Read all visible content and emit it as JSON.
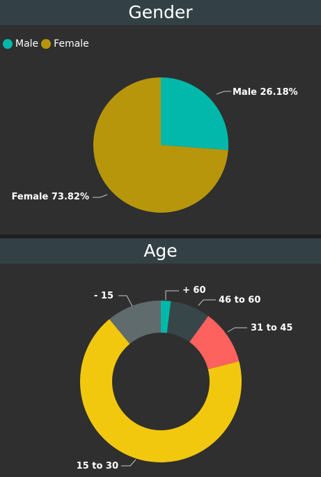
{
  "gender": {
    "title": "Gender",
    "legend": [
      {
        "label": "Male",
        "color": "#01b8aa"
      },
      {
        "label": "Female",
        "color": "#b8960b"
      }
    ]
  },
  "age": {
    "title": "Age"
  },
  "chart_data": [
    {
      "type": "pie",
      "title": "Gender",
      "legend_placement": "top-left",
      "slices": [
        {
          "name": "Male",
          "value": 26.18,
          "label": "Male 26.18%",
          "color": "#01b8aa"
        },
        {
          "name": "Female",
          "value": 73.82,
          "label": "Female 73.82%",
          "color": "#b8960b"
        }
      ]
    },
    {
      "type": "pie",
      "subtype": "donut",
      "title": "Age",
      "slices": [
        {
          "name": "+ 60",
          "value": 2,
          "label": "+ 60",
          "color": "#01b8aa"
        },
        {
          "name": "46 to 60",
          "value": 8,
          "label": "46 to 60",
          "color": "#374649"
        },
        {
          "name": "31 to 45",
          "value": 11,
          "label": "31 to 45",
          "color": "#fd625e"
        },
        {
          "name": "15 to 30",
          "value": 68,
          "label": "15 to 30",
          "color": "#f2c80f"
        },
        {
          "name": "- 15",
          "value": 11,
          "label": "- 15",
          "color": "#5f6b6d"
        }
      ]
    }
  ]
}
